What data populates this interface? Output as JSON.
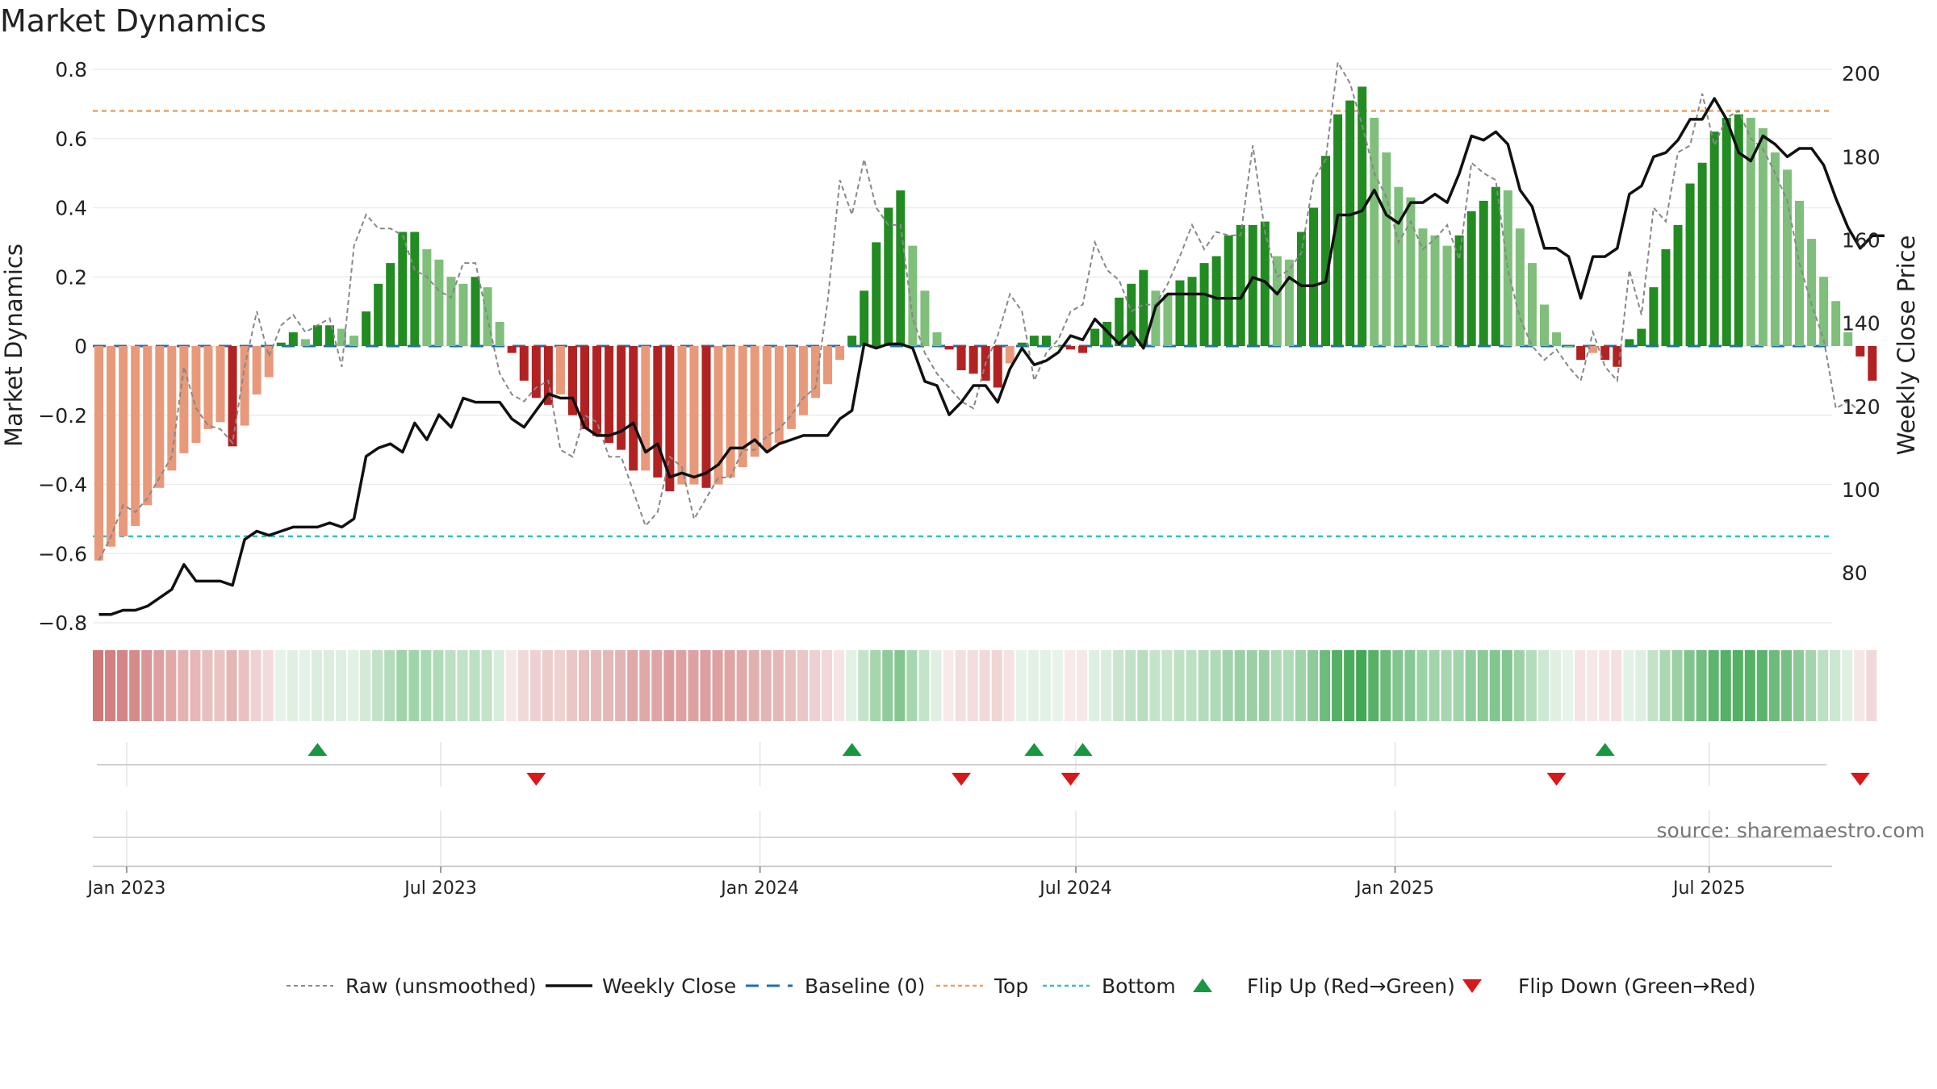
{
  "title": "Market Dynamics",
  "source": "source: sharemaestro.com",
  "chart_data": {
    "type": "bar",
    "title": "Market Dynamics",
    "x_start": "2022-12-16",
    "x_step_days": 7,
    "x_ticks": [
      "Jan 2023",
      "Jul 2023",
      "Jan 2024",
      "Jul 2024",
      "Jan 2025",
      "Jul 2025"
    ],
    "x_tick_dates": [
      "2023-01-01",
      "2023-07-01",
      "2024-01-01",
      "2024-07-01",
      "2025-01-01",
      "2025-07-01"
    ],
    "left_axis": {
      "label": "Market Dynamics",
      "ylim": [
        -0.8,
        0.8
      ],
      "ticks": [
        -0.8,
        -0.6,
        -0.4,
        -0.2,
        0,
        0.2,
        0.4,
        0.6,
        0.8
      ],
      "tick_labels": [
        "−0.8",
        "−0.6",
        "−0.4",
        "−0.2",
        "0",
        "0.2",
        "0.4",
        "0.6",
        "0.8"
      ]
    },
    "right_axis": {
      "label": "Weekly Close Price",
      "ylim": [
        68,
        201
      ],
      "ticks": [
        80,
        100,
        120,
        140,
        160,
        180,
        200
      ]
    },
    "levels": {
      "top": 0.68,
      "bottom": -0.55,
      "baseline": 0
    },
    "dynamics": [
      -0.62,
      -0.58,
      -0.55,
      -0.52,
      -0.46,
      -0.41,
      -0.36,
      -0.31,
      -0.28,
      -0.24,
      -0.22,
      -0.29,
      -0.23,
      -0.14,
      -0.09,
      0.01,
      0.04,
      0.02,
      0.06,
      0.06,
      0.05,
      0.03,
      0.1,
      0.18,
      0.24,
      0.33,
      0.33,
      0.28,
      0.25,
      0.2,
      0.18,
      0.2,
      0.17,
      0.07,
      -0.02,
      -0.1,
      -0.15,
      -0.17,
      -0.14,
      -0.2,
      -0.24,
      -0.26,
      -0.28,
      -0.3,
      -0.36,
      -0.36,
      -0.38,
      -0.42,
      -0.4,
      -0.4,
      -0.41,
      -0.4,
      -0.38,
      -0.35,
      -0.32,
      -0.3,
      -0.28,
      -0.24,
      -0.2,
      -0.15,
      -0.11,
      -0.04,
      0.03,
      0.16,
      0.3,
      0.4,
      0.45,
      0.29,
      0.16,
      0.04,
      -0.01,
      -0.07,
      -0.08,
      -0.1,
      -0.12,
      -0.05,
      0.01,
      0.03,
      0.03,
      0,
      -0.01,
      -0.02,
      0.05,
      0.07,
      0.14,
      0.18,
      0.22,
      0.16,
      0.15,
      0.19,
      0.2,
      0.24,
      0.26,
      0.32,
      0.35,
      0.35,
      0.36,
      0.26,
      0.25,
      0.33,
      0.4,
      0.55,
      0.67,
      0.71,
      0.75,
      0.66,
      0.56,
      0.46,
      0.43,
      0.34,
      0.32,
      0.29,
      0.32,
      0.39,
      0.42,
      0.46,
      0.45,
      0.34,
      0.24,
      0.12,
      0.04,
      0,
      -0.04,
      -0.02,
      -0.04,
      -0.06,
      0.02,
      0.05,
      0.17,
      0.28,
      0.35,
      0.47,
      0.53,
      0.62,
      0.66,
      0.67,
      0.66,
      0.63,
      0.56,
      0.51,
      0.42,
      0.31,
      0.2,
      0.13,
      0.04,
      -0.03,
      -0.1
    ],
    "raw": [
      -0.62,
      -0.55,
      -0.46,
      -0.48,
      -0.44,
      -0.38,
      -0.32,
      -0.06,
      -0.18,
      -0.23,
      -0.24,
      -0.28,
      -0.06,
      0.1,
      -0.03,
      0.06,
      0.09,
      0.04,
      0.06,
      0.08,
      -0.06,
      0.29,
      0.38,
      0.34,
      0.34,
      0.32,
      0.22,
      0.2,
      0.16,
      0.14,
      0.24,
      0.24,
      0.08,
      -0.08,
      -0.14,
      -0.16,
      -0.12,
      -0.1,
      -0.3,
      -0.32,
      -0.2,
      -0.22,
      -0.32,
      -0.32,
      -0.42,
      -0.52,
      -0.48,
      -0.32,
      -0.35,
      -0.5,
      -0.44,
      -0.38,
      -0.38,
      -0.3,
      -0.3,
      -0.26,
      -0.24,
      -0.2,
      -0.15,
      -0.12,
      0.13,
      0.48,
      0.38,
      0.54,
      0.4,
      0.35,
      0.35,
      0.08,
      -0.02,
      -0.08,
      -0.12,
      -0.16,
      -0.18,
      -0.05,
      0.03,
      0.15,
      0.1,
      -0.1,
      -0.02,
      0.02,
      0.1,
      0.12,
      0.3,
      0.22,
      0.19,
      0.1,
      0.12,
      0.12,
      0.18,
      0.26,
      0.35,
      0.28,
      0.33,
      0.32,
      0.32,
      0.58,
      0.33,
      0.2,
      0.22,
      0.27,
      0.48,
      0.54,
      0.82,
      0.76,
      0.64,
      0.5,
      0.43,
      0.3,
      0.36,
      0.28,
      0.31,
      0.35,
      0.25,
      0.53,
      0.5,
      0.48,
      0.22,
      0.08,
      0,
      -0.04,
      -0.01,
      -0.06,
      -0.1,
      0.04,
      -0.06,
      -0.1,
      0.22,
      0.09,
      0.4,
      0.36,
      0.56,
      0.58,
      0.73,
      0.58,
      0.66,
      0.68,
      0.6,
      0.57,
      0.5,
      0.42,
      0.24,
      0.12,
      0.02,
      -0.18,
      -0.16,
      -0.19
    ],
    "weekly_close": [
      70,
      70,
      71,
      71,
      72,
      74,
      76,
      82,
      78,
      78,
      78,
      77,
      88,
      90,
      89,
      90,
      91,
      91,
      91,
      92,
      91,
      93,
      108,
      110,
      111,
      109,
      116,
      112,
      118,
      115,
      122,
      121,
      121,
      121,
      117,
      115,
      119,
      123,
      122,
      122,
      115,
      113,
      113,
      114,
      116,
      109,
      111,
      103,
      104,
      103,
      104,
      106,
      110,
      110,
      112,
      109,
      111,
      112,
      113,
      113,
      113,
      117,
      119,
      135,
      134,
      135,
      135,
      134,
      126,
      125,
      118,
      121,
      125,
      125,
      121,
      129,
      134,
      130,
      131,
      133,
      137,
      136,
      141,
      138,
      135,
      138,
      134,
      144,
      147,
      147,
      147,
      147,
      146,
      146,
      146,
      151,
      150,
      147,
      151,
      149,
      149,
      150,
      166,
      166,
      167,
      172,
      166,
      164,
      169,
      169,
      171,
      169,
      176,
      185,
      184,
      186,
      183,
      172,
      168,
      158,
      158,
      156,
      146,
      156,
      156,
      158,
      171,
      173,
      180,
      181,
      184,
      189,
      189,
      194,
      189,
      181,
      179,
      185,
      183,
      180,
      182,
      182,
      178,
      170,
      163,
      158,
      161,
      161
    ],
    "strip_shades": [
      0.62,
      0.58,
      0.55,
      0.52,
      0.46,
      0.41,
      0.36,
      0.31,
      0.28,
      0.24,
      0.22,
      0.29,
      0.23,
      0.14,
      0.09,
      0.01,
      0.04,
      0.02,
      0.06,
      0.06,
      0.05,
      0.03,
      0.1,
      0.18,
      0.24,
      0.33,
      0.33,
      0.28,
      0.25,
      0.2,
      0.18,
      0.2,
      0.17,
      0.07,
      0.02,
      0.1,
      0.15,
      0.17,
      0.14,
      0.2,
      0.24,
      0.26,
      0.28,
      0.3,
      0.36,
      0.36,
      0.38,
      0.42,
      0.4,
      0.4,
      0.41,
      0.4,
      0.38,
      0.35,
      0.32,
      0.3,
      0.28,
      0.24,
      0.2,
      0.15,
      0.11,
      0.04,
      0.03,
      0.16,
      0.3,
      0.4,
      0.45,
      0.29,
      0.16,
      0.04,
      0.01,
      0.07,
      0.08,
      0.1,
      0.12,
      0.05,
      0.01,
      0.03,
      0.03,
      0,
      0.01,
      0.02,
      0.05,
      0.07,
      0.14,
      0.18,
      0.22,
      0.16,
      0.15,
      0.19,
      0.2,
      0.24,
      0.26,
      0.32,
      0.35,
      0.35,
      0.36,
      0.26,
      0.25,
      0.33,
      0.4,
      0.55,
      0.67,
      0.71,
      0.75,
      0.66,
      0.56,
      0.46,
      0.43,
      0.34,
      0.32,
      0.29,
      0.32,
      0.39,
      0.42,
      0.46,
      0.45,
      0.34,
      0.24,
      0.12,
      0.04,
      0,
      0.04,
      0.02,
      0.04,
      0.06,
      0.02,
      0.05,
      0.17,
      0.28,
      0.35,
      0.47,
      0.53,
      0.62,
      0.66,
      0.67,
      0.66,
      0.63,
      0.56,
      0.51,
      0.42,
      0.31,
      0.2,
      0.13,
      0.04,
      0.03,
      0.1
    ],
    "flip_up_dates": [
      "2023-04-21",
      "2024-02-23",
      "2024-06-07",
      "2024-07-05",
      "2025-05-02"
    ],
    "flip_down_dates": [
      "2023-08-25",
      "2024-04-26",
      "2024-06-28",
      "2025-04-04",
      "2025-09-26"
    ],
    "legend": [
      "Raw (unsmoothed)",
      "Weekly Close",
      "Baseline (0)",
      "Top",
      "Bottom",
      "Flip Up (Red→Green)",
      "Flip Down (Green→Red)"
    ],
    "colors": {
      "strong_green": "#228B22",
      "light_green": "#7fbf7b",
      "strong_red": "#b22222",
      "light_red": "#e8997a",
      "raw_line": "#888888",
      "close_line": "#111111",
      "baseline": "#1f6fb2",
      "top": "#f0a060",
      "bottom": "#2ec4c4",
      "flip_up": "#1a9641",
      "flip_down": "#d7191c"
    }
  }
}
